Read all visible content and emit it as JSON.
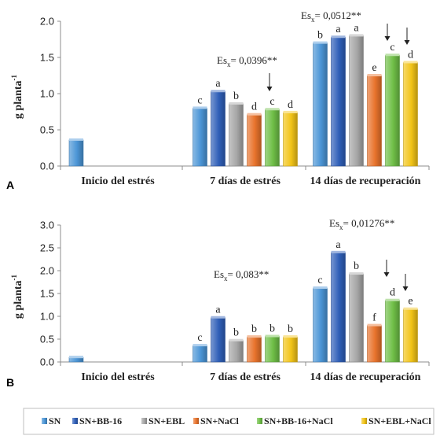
{
  "chart_data": [
    {
      "type": "bar",
      "panel_label": "A",
      "ylabel": "g planta",
      "ylabel_sup": "-1",
      "ylim": [
        0,
        2.0
      ],
      "yticks": [
        "0.0",
        "0.5",
        "1.0",
        "1.5",
        "2.0"
      ],
      "grid": false,
      "categories": [
        "Inicio del estrés",
        "7 días de estrés",
        "14 días de recuperación"
      ],
      "series": [
        {
          "name": "SN",
          "color": "#4b95d6",
          "values": [
            0.36,
            0.8,
            1.7
          ],
          "labels": [
            "",
            "c",
            "b"
          ]
        },
        {
          "name": "SN+BB-16",
          "color": "#2f5fb8",
          "values": [
            null,
            1.03,
            1.78
          ],
          "labels": [
            "",
            "a",
            "a"
          ]
        },
        {
          "name": "SN+EBL",
          "color": "#a6a6a6",
          "values": [
            null,
            0.86,
            1.8
          ],
          "labels": [
            "",
            "b",
            "a"
          ]
        },
        {
          "name": "SN+NaCl",
          "color": "#e8732c",
          "values": [
            null,
            0.71,
            1.25
          ],
          "labels": [
            "",
            "d",
            "e"
          ]
        },
        {
          "name": "SN+BB-16+NaCl",
          "color": "#6fbf47",
          "values": [
            null,
            0.78,
            1.53
          ],
          "labels": [
            "",
            "c",
            "c"
          ]
        },
        {
          "name": "SN+EBL+NaCl",
          "color": "#f2c418",
          "values": [
            null,
            0.74,
            1.43
          ],
          "labels": [
            "",
            "d",
            "d"
          ]
        }
      ],
      "annotations": [
        {
          "text": "Es",
          "sub": "x",
          "rest": "= 0,0396**"
        },
        {
          "text": "Es",
          "sub": "x",
          "rest": "= 0,0512**"
        }
      ]
    },
    {
      "type": "bar",
      "panel_label": "B",
      "ylabel": "g planta",
      "ylabel_sup": "-1",
      "ylim": [
        0,
        3.0
      ],
      "yticks": [
        "0.0",
        "0.5",
        "1.0",
        "1.5",
        "2.0",
        "2.5",
        "3.0"
      ],
      "grid": false,
      "categories": [
        "Inicio del estrés",
        "7 días de estrés",
        "14 días de recuperación"
      ],
      "series": [
        {
          "name": "SN",
          "color": "#4b95d6",
          "values": [
            0.1,
            0.36,
            1.62
          ],
          "labels": [
            "",
            "c",
            "c"
          ]
        },
        {
          "name": "SN+BB-16",
          "color": "#2f5fb8",
          "values": [
            null,
            0.97,
            2.4
          ],
          "labels": [
            "",
            "a",
            "a"
          ]
        },
        {
          "name": "SN+EBL",
          "color": "#a6a6a6",
          "values": [
            null,
            0.47,
            1.93
          ],
          "labels": [
            "",
            "b",
            "b"
          ]
        },
        {
          "name": "SN+NaCl",
          "color": "#e8732c",
          "values": [
            null,
            0.55,
            0.8
          ],
          "labels": [
            "",
            "b",
            "f"
          ]
        },
        {
          "name": "SN+BB-16+NaCl",
          "color": "#6fbf47",
          "values": [
            null,
            0.56,
            1.35
          ],
          "labels": [
            "",
            "b",
            "d"
          ]
        },
        {
          "name": "SN+EBL+NaCl",
          "color": "#f2c418",
          "values": [
            null,
            0.55,
            1.16
          ],
          "labels": [
            "",
            "b",
            "e"
          ]
        }
      ],
      "annotations": [
        {
          "text": "Es",
          "sub": "x",
          "rest": "= 0,083**"
        },
        {
          "text": "Es",
          "sub": "x",
          "rest": "= 0,01276**"
        }
      ]
    }
  ],
  "legend": {
    "placement": "bottom",
    "items": [
      "SN",
      "SN+BB-16",
      "SN+EBL",
      "SN+NaCl",
      "SN+BB-16+NaCl",
      "SN+EBL+NaCl"
    ]
  }
}
